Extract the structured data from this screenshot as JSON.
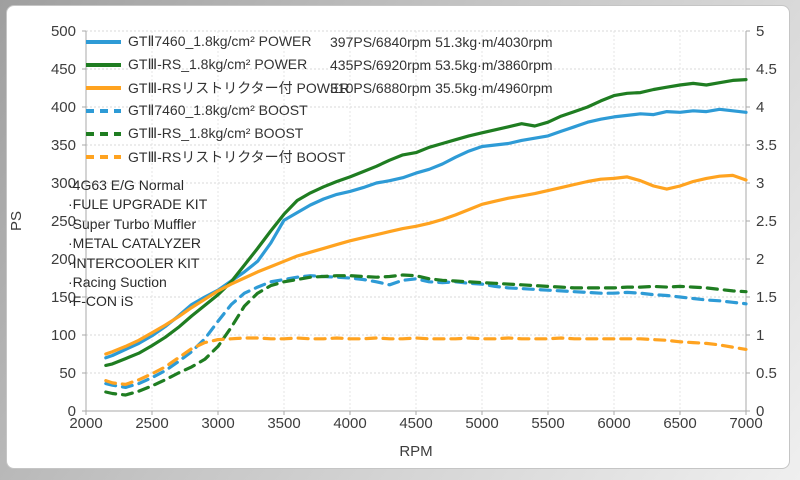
{
  "chart_data": {
    "type": "line",
    "title": "",
    "xlabel": "RPM",
    "ylabel_left": "PS",
    "ylabel_right": "",
    "x_range": [
      2000,
      7000
    ],
    "y_left_range": [
      0,
      500
    ],
    "y_right_range": [
      0,
      5
    ],
    "grid": true,
    "legend_position": "top-left",
    "x_ticks": [
      2000,
      2500,
      3000,
      3500,
      4000,
      4500,
      5000,
      5500,
      6000,
      6500,
      7000
    ],
    "y_left_ticks": [
      0,
      50,
      100,
      150,
      200,
      250,
      300,
      350,
      400,
      450,
      500
    ],
    "y_right_ticks": [
      "0",
      "0.5",
      "1",
      "1.5",
      "2",
      "2.5",
      "3",
      "3.5",
      "4",
      "4.5",
      "5"
    ],
    "rpm": [
      2150,
      2200,
      2300,
      2400,
      2500,
      2600,
      2700,
      2800,
      2900,
      3000,
      3100,
      3200,
      3300,
      3400,
      3500,
      3600,
      3700,
      3800,
      3900,
      4000,
      4100,
      4200,
      4300,
      4400,
      4500,
      4600,
      4700,
      4800,
      4900,
      5000,
      5100,
      5200,
      5300,
      5400,
      5500,
      5600,
      5700,
      5800,
      5900,
      6000,
      6100,
      6200,
      6300,
      6400,
      6500,
      6600,
      6700,
      6800,
      6900,
      7000
    ],
    "series": [
      {
        "name": "GTⅡ7460_1.8kg/cm² POWER",
        "stats": "397PS/6840rpm 51.3kg·m/4030rpm",
        "unit": "PS",
        "axis": "left",
        "style": "solid",
        "color": "#2E9BD6",
        "values": [
          70,
          73,
          81,
          89,
          99,
          111,
          125,
          140,
          150,
          159,
          171,
          183,
          197,
          221,
          251,
          261,
          271,
          279,
          285,
          289,
          294,
          300,
          303,
          307,
          313,
          318,
          325,
          334,
          342,
          348,
          350,
          352,
          356,
          359,
          362,
          368,
          374,
          380,
          384,
          387,
          389,
          391,
          390,
          394,
          393,
          395,
          394,
          397,
          395,
          393
        ]
      },
      {
        "name": "GTⅢ-RS_1.8kg/cm² POWER",
        "stats": "435PS/6920rpm 53.5kg·m/3860rpm",
        "unit": "PS",
        "axis": "left",
        "style": "solid",
        "color": "#1F7D21",
        "values": [
          60,
          62,
          69,
          76,
          86,
          97,
          110,
          125,
          139,
          153,
          170,
          192,
          214,
          237,
          259,
          277,
          287,
          295,
          302,
          308,
          315,
          322,
          330,
          337,
          340,
          347,
          352,
          357,
          362,
          366,
          370,
          374,
          378,
          375,
          380,
          388,
          394,
          400,
          408,
          415,
          418,
          419,
          423,
          426,
          429,
          431,
          429,
          432,
          435,
          436
        ]
      },
      {
        "name": "GTⅢ-RSリストリクター付 POWER",
        "stats": "310PS/6880rpm 35.5kg·m/4960rpm",
        "unit": "PS",
        "axis": "left",
        "style": "solid",
        "color": "#FFA320",
        "values": [
          75,
          78,
          85,
          93,
          103,
          113,
          124,
          136,
          147,
          158,
          167,
          175,
          183,
          190,
          197,
          204,
          209,
          214,
          219,
          224,
          228,
          232,
          236,
          240,
          243,
          247,
          252,
          258,
          265,
          272,
          276,
          280,
          283,
          286,
          290,
          294,
          298,
          302,
          305,
          306,
          308,
          303,
          296,
          292,
          296,
          302,
          306,
          309,
          310,
          304
        ]
      },
      {
        "name": "GTⅡ7460_1.8kg/cm² BOOST",
        "stats": "",
        "unit": "kg/cm²",
        "axis": "right",
        "style": "dashed",
        "color": "#2E9BD6",
        "values": [
          0.36,
          0.34,
          0.31,
          0.36,
          0.44,
          0.53,
          0.65,
          0.78,
          0.95,
          1.18,
          1.4,
          1.55,
          1.63,
          1.7,
          1.73,
          1.76,
          1.78,
          1.77,
          1.76,
          1.75,
          1.73,
          1.7,
          1.66,
          1.72,
          1.74,
          1.7,
          1.69,
          1.7,
          1.68,
          1.67,
          1.64,
          1.62,
          1.61,
          1.6,
          1.59,
          1.58,
          1.57,
          1.56,
          1.55,
          1.55,
          1.56,
          1.55,
          1.53,
          1.52,
          1.5,
          1.48,
          1.46,
          1.45,
          1.43,
          1.41
        ]
      },
      {
        "name": "GTⅢ-RS_1.8kg/cm² BOOST",
        "stats": "",
        "unit": "kg/cm²",
        "axis": "right",
        "style": "dashed",
        "color": "#1F7D21",
        "values": [
          0.25,
          0.23,
          0.21,
          0.26,
          0.33,
          0.41,
          0.5,
          0.58,
          0.68,
          0.85,
          1.1,
          1.38,
          1.55,
          1.65,
          1.7,
          1.73,
          1.76,
          1.77,
          1.78,
          1.78,
          1.77,
          1.76,
          1.77,
          1.79,
          1.78,
          1.74,
          1.72,
          1.71,
          1.7,
          1.69,
          1.68,
          1.67,
          1.66,
          1.65,
          1.64,
          1.63,
          1.62,
          1.62,
          1.62,
          1.62,
          1.63,
          1.63,
          1.64,
          1.63,
          1.64,
          1.63,
          1.62,
          1.6,
          1.58,
          1.57
        ]
      },
      {
        "name": "GTⅢ-RSリストリクター付 BOOST",
        "stats": "",
        "unit": "kg/cm²",
        "axis": "right",
        "style": "dashed",
        "color": "#FFA320",
        "values": [
          0.4,
          0.37,
          0.35,
          0.41,
          0.49,
          0.58,
          0.7,
          0.82,
          0.9,
          0.94,
          0.95,
          0.96,
          0.96,
          0.95,
          0.95,
          0.96,
          0.95,
          0.95,
          0.96,
          0.95,
          0.95,
          0.96,
          0.95,
          0.95,
          0.96,
          0.95,
          0.95,
          0.95,
          0.96,
          0.95,
          0.95,
          0.96,
          0.95,
          0.95,
          0.95,
          0.96,
          0.95,
          0.95,
          0.95,
          0.95,
          0.95,
          0.95,
          0.94,
          0.93,
          0.91,
          0.9,
          0.89,
          0.87,
          0.84,
          0.81
        ]
      }
    ]
  },
  "annotations": [
    "·4G63 E/G Normal",
    "·FULE UPGRADE KIT",
    "·Super Turbo Muffler",
    "·METAL CATALYZER",
    "·INTERCOOLER KIT",
    "·Racing Suction",
    "·F-CON iS"
  ],
  "style": {
    "grid_color": "#dadada",
    "axis_color": "#a8a8a8",
    "tick_text_color": "#3d3d3d"
  }
}
